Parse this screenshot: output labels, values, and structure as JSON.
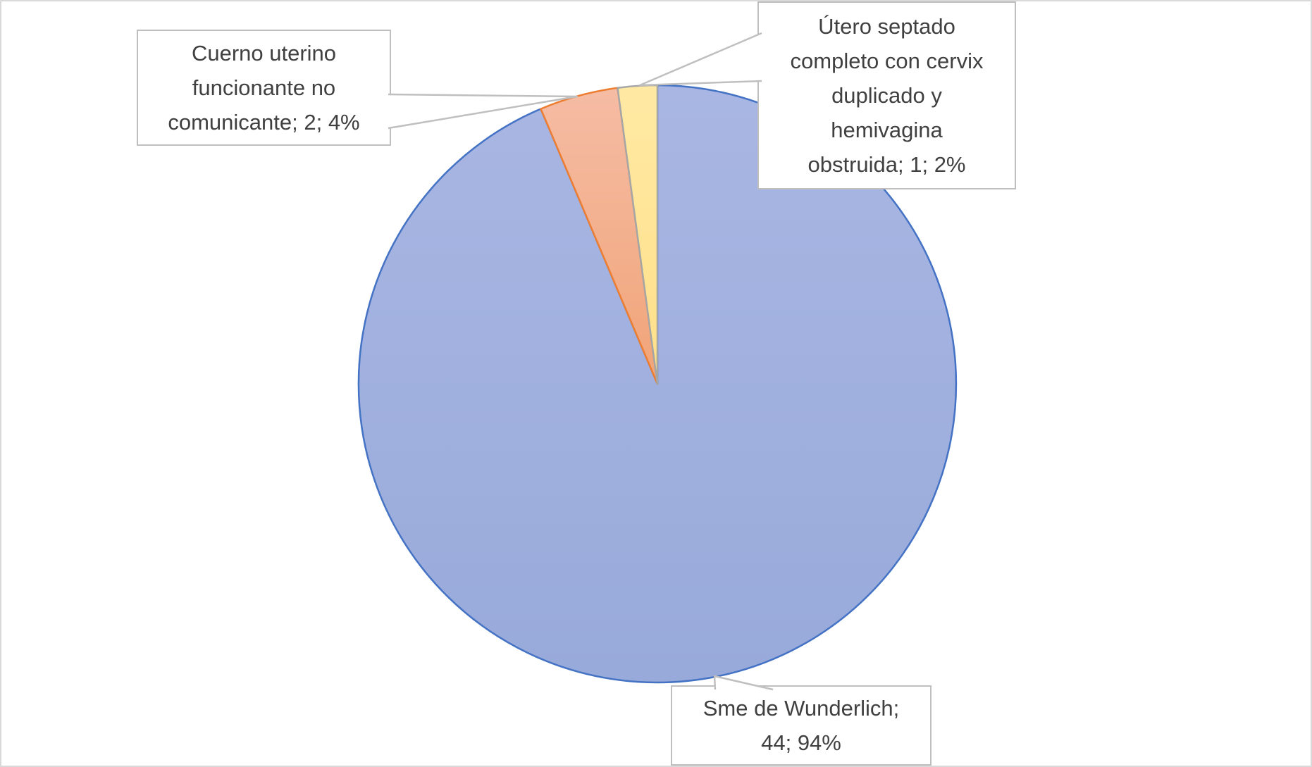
{
  "chart_data": {
    "type": "pie",
    "title": "",
    "legend": "none",
    "start_angle_deg": 0,
    "direction": "clockwise",
    "total": 47,
    "categories": [
      "Sme de Wunderlich",
      "Cuerno uterino funcionante no comunicante",
      "Útero septado completo con cervix duplicado y hemivagina obstruida"
    ],
    "values": [
      44,
      2,
      1
    ],
    "percent_labels": [
      "94%",
      "4%",
      "2%"
    ],
    "slices": [
      {
        "name": "Sme de Wunderlich",
        "value": 44,
        "pct": "94%",
        "fill_top": "#A9B6E3",
        "fill_bottom": "#98AADA",
        "border": "#4472C4"
      },
      {
        "name": "Cuerno uterino funcionante no comunicante",
        "value": 2,
        "pct": "4%",
        "fill_top": "#F5BCA4",
        "fill_bottom": "#F1A478",
        "border": "#ED7D31"
      },
      {
        "name": "Útero septado completo con cervix duplicado y hemivagina obstruida",
        "value": 1,
        "pct": "2%",
        "fill_top": "#FFE9A3",
        "fill_bottom": "#FFE08A",
        "border": "#A6A6A6"
      }
    ]
  },
  "callouts": [
    {
      "text": "Cuerno uterino\nfuncionante no\ncomunicante; 2; 4%"
    },
    {
      "text": "Útero septado\ncompleto con cervix\nduplicado y\nhemivagina\nobstruida; 1; 2%"
    },
    {
      "text": "Sme de Wunderlich;\n44; 94%"
    }
  ],
  "ui": {
    "background_color": "#FFFFFF",
    "chart_border_color": "#D9D9D9",
    "label_border_color": "#BFBFBF",
    "leader_line_color": "#BFBFBF",
    "label_text_color": "#404040"
  }
}
